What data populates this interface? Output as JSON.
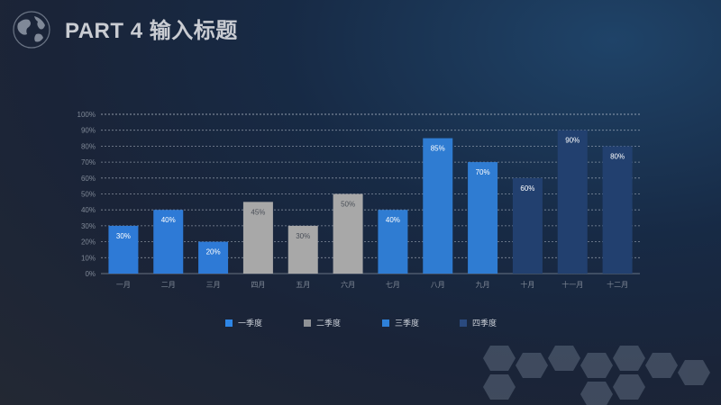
{
  "header": {
    "title": "PART 4 输入标题"
  },
  "colors": {
    "series1": "#2e7ad6",
    "series2": "#a8a8a8",
    "series3": "#2f7cd2",
    "series4": "#22406f"
  },
  "chart_data": {
    "type": "bar",
    "categories": [
      "一月",
      "二月",
      "三月",
      "四月",
      "五月",
      "六月",
      "七月",
      "八月",
      "九月",
      "十月",
      "十一月",
      "十二月"
    ],
    "series": [
      {
        "name": "一季度",
        "points": [
          {
            "category": "一月",
            "value": 30
          },
          {
            "category": "二月",
            "value": 40
          },
          {
            "category": "三月",
            "value": 20
          }
        ]
      },
      {
        "name": "二季度",
        "points": [
          {
            "category": "四月",
            "value": 45
          },
          {
            "category": "五月",
            "value": 30
          },
          {
            "category": "六月",
            "value": 50
          }
        ]
      },
      {
        "name": "三季度",
        "points": [
          {
            "category": "七月",
            "value": 40
          },
          {
            "category": "八月",
            "value": 85
          },
          {
            "category": "九月",
            "value": 70
          }
        ]
      },
      {
        "name": "四季度",
        "points": [
          {
            "category": "十月",
            "value": 60
          },
          {
            "category": "十一月",
            "value": 90
          },
          {
            "category": "十二月",
            "value": 80
          }
        ]
      }
    ],
    "value_labels": [
      "30%",
      "40%",
      "20%",
      "45%",
      "30%",
      "50%",
      "40%",
      "85%",
      "70%",
      "60%",
      "90%",
      "80%"
    ],
    "yticks": [
      "0%",
      "10%",
      "20%",
      "30%",
      "40%",
      "50%",
      "60%",
      "70%",
      "80%",
      "90%",
      "100%"
    ],
    "ylim": [
      0,
      100
    ],
    "grid": true,
    "legend_position": "bottom",
    "title": ""
  }
}
